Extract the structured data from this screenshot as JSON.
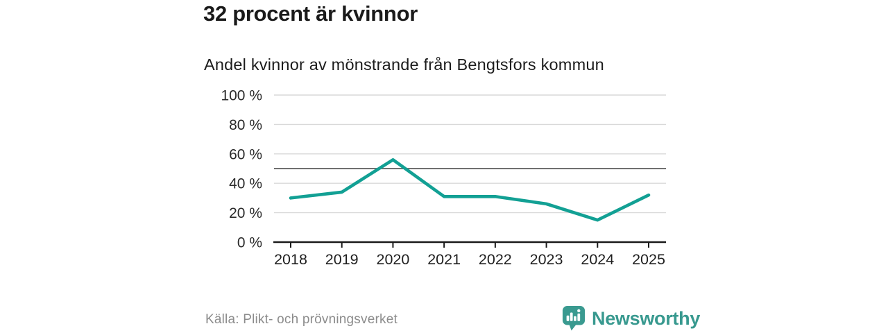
{
  "header": {
    "title": "32 procent är kvinnor",
    "subtitle": "Andel kvinnor av mönstrande från Bengtsfors kommun"
  },
  "chart_data": {
    "type": "line",
    "title": "32 procent är kvinnor",
    "subtitle": "Andel kvinnor av mönstrande från Bengtsfors kommun",
    "categories": [
      "2018",
      "2019",
      "2020",
      "2021",
      "2022",
      "2023",
      "2024",
      "2025"
    ],
    "series": [
      {
        "name": "Andel kvinnor",
        "values": [
          30,
          34,
          56,
          31,
          31,
          26,
          15,
          32
        ]
      }
    ],
    "unit": "%",
    "xlabel": "",
    "ylabel": "",
    "ylim": [
      0,
      100
    ],
    "yticks": [
      {
        "value": 100,
        "label": "100 %"
      },
      {
        "value": 80,
        "label": "80 %"
      },
      {
        "value": 60,
        "label": "60 %"
      },
      {
        "value": 40,
        "label": "40 %"
      },
      {
        "value": 20,
        "label": "20 %"
      },
      {
        "value": 0,
        "label": "0 %"
      }
    ],
    "reference_line": 50,
    "grid": "horizontal",
    "legend": "none",
    "line_color": "#12A094",
    "gridline_color": "#d9d9d9",
    "reference_line_color": "#5c5c5c",
    "axis_color": "#1a1a1a"
  },
  "footer": {
    "source": "Källa: Plikt- och prövningsverket",
    "brand": "Newsworthy",
    "brand_color": "#38998F"
  }
}
